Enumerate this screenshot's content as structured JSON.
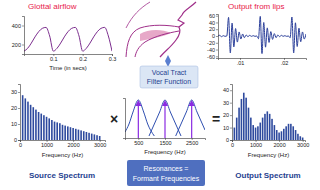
{
  "chart_data": [
    {
      "type": "line",
      "title": "Glottal airflow",
      "xlabel": "Time (in secs)",
      "x": [
        0,
        0.0125,
        0.025,
        0.0375,
        0.05,
        0.0625,
        0.075,
        0.0875,
        0.1,
        0.1125,
        0.125,
        0.1375,
        0.15,
        0.1625,
        0.175,
        0.1875,
        0.2,
        0.2125,
        0.225,
        0.2375,
        0.25,
        0.2625,
        0.275,
        0.2875,
        0.3
      ],
      "values": [
        130,
        160,
        215,
        280,
        335,
        370,
        380,
        290,
        130,
        160,
        215,
        280,
        335,
        370,
        380,
        290,
        130,
        160,
        215,
        280,
        335,
        370,
        380,
        290,
        130
      ],
      "color": "#7b2d8e",
      "xlim": [
        0,
        0.3
      ],
      "ylim": [
        100,
        500
      ],
      "xticks": [
        0.1,
        0.2,
        0.3
      ],
      "yticks": [
        200,
        400
      ]
    },
    {
      "type": "line",
      "title": "Output from lips",
      "x": [
        0.005,
        0.0054,
        0.0058,
        0.0062,
        0.0066,
        0.007,
        0.0074,
        0.0078,
        0.0082,
        0.0086,
        0.009,
        0.0094,
        0.0098,
        0.0102,
        0.0106,
        0.011,
        0.0114,
        0.0118,
        0.0122,
        0.0126,
        0.013,
        0.0134,
        0.0138,
        0.0142,
        0.0146,
        0.015,
        0.0154,
        0.0158,
        0.0162,
        0.0166,
        0.017,
        0.0174,
        0.0178,
        0.0182,
        0.0186,
        0.019,
        0.0194,
        0.0198,
        0.0202,
        0.0206,
        0.021,
        0.0214,
        0.0218,
        0.0222,
        0.0226,
        0.023,
        0.0234,
        0.0238,
        0.0242,
        0.0246,
        0.025
      ],
      "values": [
        0,
        2,
        -2,
        1,
        -1,
        0,
        55,
        -50,
        38,
        -32,
        22,
        -18,
        12,
        -9,
        6,
        -5,
        3,
        -2,
        2,
        -1,
        1,
        -1,
        0,
        -8,
        58,
        -52,
        40,
        -33,
        24,
        -19,
        13,
        -10,
        7,
        -5,
        3,
        -2,
        2,
        -1,
        1,
        -1,
        0,
        -5,
        56,
        -50,
        39,
        -31,
        23,
        -17,
        12,
        -9,
        6
      ],
      "color": "#2b3f9a",
      "xlim": [
        0.005,
        0.025
      ],
      "ylim": [
        -65,
        65
      ],
      "xticks": [
        {
          "value": 0.01,
          "label": ".01"
        },
        {
          "value": 0.02,
          "label": ".02"
        }
      ],
      "yticks": [
        -60,
        -40,
        -20,
        0,
        20,
        40,
        60
      ]
    },
    {
      "type": "bar",
      "title": "Source Spectrum",
      "xlabel": "Frequency (Hz)",
      "x": [
        100,
        200,
        300,
        400,
        500,
        600,
        700,
        800,
        900,
        1000,
        1100,
        1200,
        1300,
        1400,
        1500,
        1600,
        1700,
        1800,
        1900,
        2000,
        2100,
        2200,
        2300,
        2400,
        2500,
        2600,
        2700,
        2800,
        2900,
        3000
      ],
      "values": [
        28,
        26,
        24,
        22,
        20.5,
        19,
        17.5,
        16.5,
        15.5,
        14.5,
        13.5,
        12.5,
        11.5,
        11,
        10.5,
        9.5,
        9,
        8.5,
        8,
        7.5,
        7,
        6.5,
        6,
        5.5,
        5,
        4.5,
        4,
        3.5,
        3,
        2.5
      ],
      "color": "#2e4a9e",
      "xlim": [
        0,
        3200
      ],
      "ylim": [
        0,
        35
      ],
      "xticks": [
        0,
        1000,
        2000,
        3000
      ],
      "yticks": [
        0,
        10,
        20,
        30
      ],
      "annotations": [
        "×"
      ]
    },
    {
      "type": "line",
      "xlabel": "Frequency (Hz)",
      "series": [
        {
          "color": "#2f4fb0",
          "x": [
            0,
            150,
            300,
            500,
            700,
            850,
            1100
          ],
          "values": [
            0.15,
            0.35,
            0.65,
            0.95,
            0.65,
            0.35,
            0.05
          ]
        },
        {
          "color": "#2f4fb0",
          "x": [
            900,
            1100,
            1300,
            1500,
            1700,
            1900,
            2100
          ],
          "values": [
            0.05,
            0.35,
            0.65,
            0.95,
            0.65,
            0.35,
            0.05
          ]
        },
        {
          "color": "#2f4fb0",
          "x": [
            1900,
            2100,
            2300,
            2500,
            2700,
            2900,
            3000
          ],
          "values": [
            0.05,
            0.35,
            0.65,
            0.95,
            0.65,
            0.35,
            0.2
          ]
        }
      ],
      "xlim": [
        0,
        3000
      ],
      "ylim": [
        0,
        1
      ],
      "xticks": [
        500,
        1500,
        2500
      ],
      "tick_labels": "x",
      "annotations": [
        "Vocal Tract",
        "Filter Function",
        "Resonances =",
        "Formant Frequencies"
      ]
    },
    {
      "type": "bar",
      "title": "Output Spectrum",
      "xlabel": "Frequency (Hz)",
      "x": [
        100,
        200,
        300,
        400,
        500,
        600,
        700,
        800,
        900,
        1000,
        1100,
        1200,
        1300,
        1400,
        1500,
        1600,
        1700,
        1800,
        1900,
        2000,
        2100,
        2200,
        2300,
        2400,
        2500,
        2600,
        2700,
        2800,
        2900,
        3000
      ],
      "values": [
        10,
        18,
        26,
        33,
        38,
        34,
        26,
        18,
        12,
        10,
        11,
        14,
        18,
        21,
        23,
        21,
        17,
        12,
        8,
        6,
        7,
        9,
        11,
        13,
        13,
        11,
        8,
        5,
        3,
        2
      ],
      "color": "#2e4a9e",
      "xlim": [
        0,
        3100
      ],
      "ylim": [
        0,
        45
      ],
      "xticks": [
        0,
        1000,
        2000,
        3000
      ],
      "yticks": [
        0,
        10,
        20,
        30,
        40
      ],
      "annotations": [
        "="
      ]
    }
  ]
}
